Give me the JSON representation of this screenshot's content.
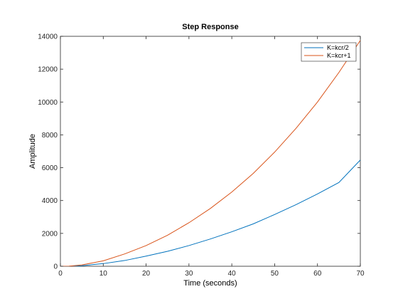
{
  "chart_data": {
    "type": "line",
    "title": "Step Response",
    "xlabel": "Time (seconds)",
    "ylabel": "Amplitude",
    "xlim": [
      0,
      70
    ],
    "ylim": [
      0,
      14000
    ],
    "xticks": [
      0,
      10,
      20,
      30,
      40,
      50,
      60,
      70
    ],
    "yticks": [
      0,
      2000,
      4000,
      6000,
      8000,
      10000,
      12000,
      14000
    ],
    "grid": false,
    "legend_position": "top-right",
    "series": [
      {
        "name": "K=kcr/2",
        "color": "#0072BD",
        "x": [
          0,
          2,
          5,
          10,
          15,
          20,
          25,
          30,
          35,
          40,
          45,
          50,
          55,
          60,
          65,
          70
        ],
        "y": [
          0,
          2,
          35,
          160,
          350,
          620,
          910,
          1260,
          1660,
          2100,
          2580,
          3150,
          3750,
          4400,
          5100,
          6470
        ]
      },
      {
        "name": "K=kcr+1",
        "color": "#D95319",
        "x": [
          0,
          2,
          5,
          10,
          15,
          20,
          25,
          30,
          35,
          40,
          45,
          50,
          55,
          60,
          65,
          70
        ],
        "y": [
          0,
          5,
          80,
          330,
          750,
          1260,
          1890,
          2650,
          3520,
          4520,
          5650,
          6950,
          8400,
          10000,
          11800,
          13750
        ]
      }
    ]
  }
}
